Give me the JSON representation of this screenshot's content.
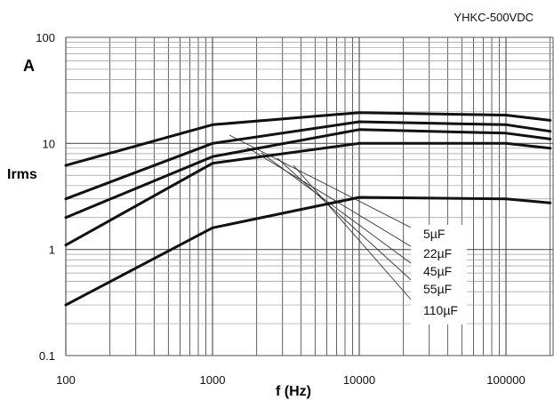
{
  "chart_data": {
    "type": "line",
    "title": "YHKC-500VDC",
    "xlabel": "f (Hz)",
    "ylabel": "Irms",
    "yunit": "A",
    "xscale": "log",
    "yscale": "log",
    "xlim": [
      100,
      200000
    ],
    "ylim": [
      0.1,
      100
    ],
    "grid": true,
    "x_ticks": [
      {
        "value": 100,
        "label": "100"
      },
      {
        "value": 1000,
        "label": "1000"
      },
      {
        "value": 10000,
        "label": "10000"
      },
      {
        "value": 100000,
        "label": "100000"
      }
    ],
    "y_ticks": [
      {
        "value": 100,
        "label": "100"
      },
      {
        "value": 10,
        "label": "10"
      },
      {
        "value": 1,
        "label": "1"
      },
      {
        "value": 0.1,
        "label": "0.1"
      }
    ],
    "series": [
      {
        "name": "5µF",
        "x": [
          100,
          1000,
          10000,
          100000,
          200000
        ],
        "y": [
          0.3,
          1.6,
          3.1,
          3.0,
          2.75
        ]
      },
      {
        "name": "22µF",
        "x": [
          100,
          1000,
          10000,
          100000,
          200000
        ],
        "y": [
          1.1,
          6.5,
          10.0,
          10.0,
          9.0
        ]
      },
      {
        "name": "45µF",
        "x": [
          100,
          1000,
          10000,
          100000,
          200000
        ],
        "y": [
          2.0,
          7.5,
          13.5,
          12.5,
          11.0
        ]
      },
      {
        "name": "55µF",
        "x": [
          100,
          1000,
          10000,
          100000,
          200000
        ],
        "y": [
          3.0,
          10.0,
          16.0,
          15.0,
          13.0
        ]
      },
      {
        "name": "110µF",
        "x": [
          100,
          1000,
          10000,
          100000,
          200000
        ],
        "y": [
          6.2,
          15.0,
          19.5,
          18.5,
          16.5
        ]
      }
    ],
    "legend": {
      "placement": "bottom-right",
      "entries": [
        "5µF",
        "22µF",
        "45µF",
        "55µF",
        "110µF"
      ]
    }
  }
}
